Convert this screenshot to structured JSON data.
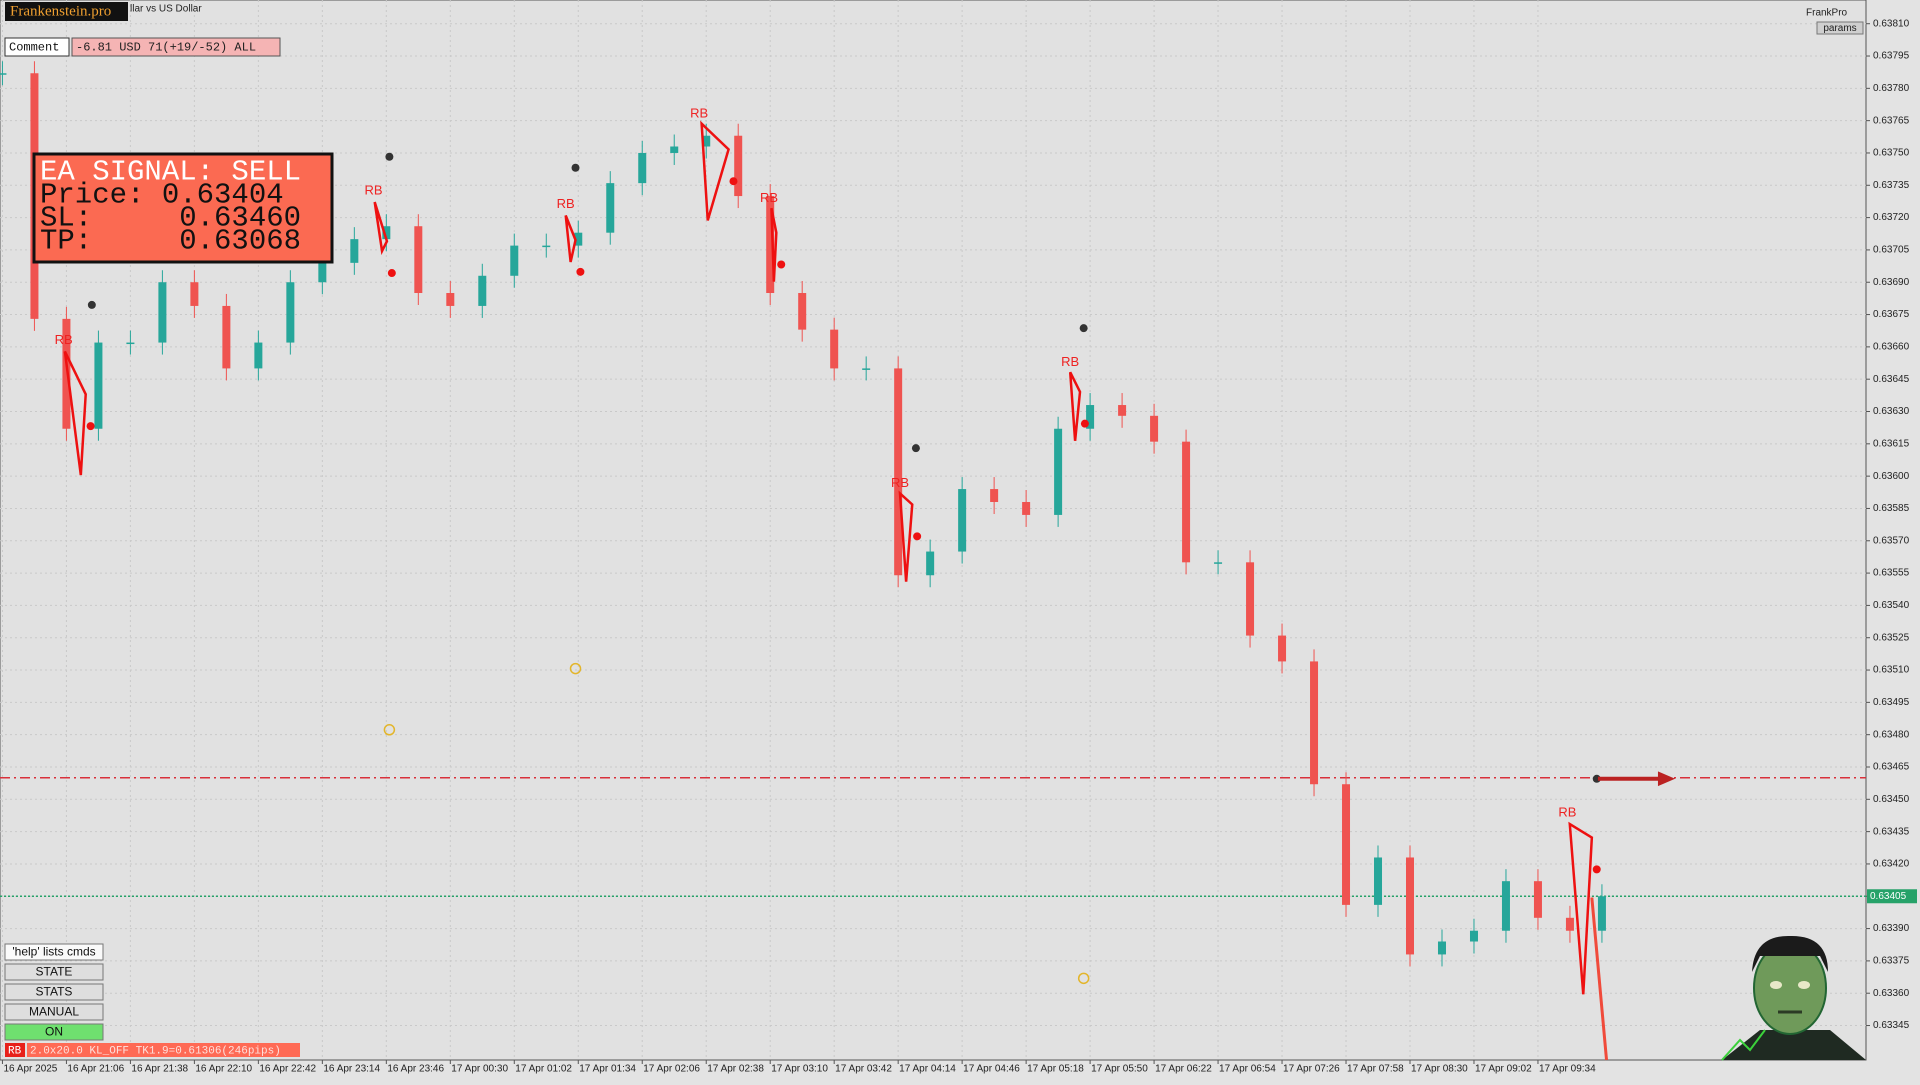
{
  "header": {
    "brand": "Frankenstein.pro",
    "symbol": "llar vs US Dollar",
    "account": "FrankPro",
    "params": "params"
  },
  "comment": {
    "label": "Comment",
    "value": "-6.81 USD 71(+19/-52) ALL"
  },
  "signal_box": {
    "lines": [
      "EA SIGNAL: SELL",
      "Price: 0.63404",
      "SL:     0.63460",
      "TP:     0.63068"
    ]
  },
  "buttons": [
    "'help' lists cmds",
    "STATE",
    "STATS",
    "MANUAL",
    "ON"
  ],
  "status": {
    "tag": "RB",
    "text": "2.0x20.0 KL_OFF TK1.9=0.61306(246pips)"
  },
  "chart_data": {
    "type": "candle-line",
    "categories": [
      "16 Apr 2025",
      null,
      "16 Apr 21:06",
      null,
      "16 Apr 21:38",
      null,
      "16 Apr 22:10",
      null,
      "16 Apr 22:42",
      null,
      "16 Apr 23:14",
      null,
      "16 Apr 23:46",
      null,
      "17 Apr 00:30",
      null,
      "17 Apr 01:02",
      null,
      "17 Apr 01:34",
      null,
      "17 Apr 02:06",
      null,
      "17 Apr 02:38",
      null,
      "17 Apr 03:10",
      null,
      "17 Apr 03:42",
      null,
      "17 Apr 04:14",
      null,
      "17 Apr 04:46",
      null,
      "17 Apr 05:18",
      null,
      "17 Apr 05:50",
      null,
      "17 Apr 06:22",
      null,
      "17 Apr 06:54",
      null,
      "17 Apr 07:26",
      null,
      "17 Apr 07:58",
      null,
      "17 Apr 08:30",
      null,
      "17 Apr 09:02",
      null,
      "17 Apr 09:34",
      null,
      null
    ],
    "values": [
      0.63787,
      0.63673,
      0.63622,
      0.63662,
      0.63662,
      0.6369,
      0.63679,
      0.6365,
      0.63662,
      0.6369,
      0.63699,
      0.6371,
      0.63716,
      0.63685,
      0.63679,
      0.63693,
      0.63707,
      0.63707,
      0.63713,
      0.63736,
      0.6375,
      0.63753,
      0.63758,
      0.6373,
      0.63685,
      0.63668,
      0.6365,
      0.6365,
      0.63554,
      0.63565,
      0.63594,
      0.63588,
      0.63582,
      0.63622,
      0.63633,
      0.63628,
      0.63616,
      0.6356,
      0.6356,
      0.63526,
      0.63514,
      0.63457,
      0.63401,
      0.63423,
      0.63378,
      0.63384,
      0.63389,
      0.63412,
      0.63395,
      0.63389,
      0.63405
    ],
    "up_color": "#26a69a",
    "down_color": "#ef5350",
    "ylim": [
      0.63329,
      0.63821
    ],
    "yticks": [
      {
        "value": 0.6381,
        "label": "0.63810"
      },
      0.63795,
      {
        "value": 0.6378,
        "label": "0.63780"
      },
      0.63765,
      {
        "value": 0.6375,
        "label": "0.63750"
      },
      0.63735,
      {
        "value": 0.6372,
        "label": "0.63720"
      },
      0.63705,
      {
        "value": 0.6369,
        "label": "0.63690"
      },
      0.63675,
      {
        "value": 0.6366,
        "label": "0.63660"
      },
      0.63645,
      {
        "value": 0.6363,
        "label": "0.63630"
      },
      0.63615,
      {
        "value": 0.636,
        "label": "0.63600"
      },
      0.63585,
      {
        "value": 0.6357,
        "label": "0.63570"
      },
      0.63555,
      {
        "value": 0.6354,
        "label": "0.63540"
      },
      0.63525,
      {
        "value": 0.6351,
        "label": "0.63510"
      },
      0.63495,
      {
        "value": 0.6348,
        "label": "0.63480"
      },
      0.63465,
      {
        "value": 0.6345,
        "label": "0.63450"
      },
      0.63435,
      {
        "value": 0.6342,
        "label": "0.63420"
      },
      0.63405,
      {
        "value": 0.6339,
        "label": "0.63390"
      },
      0.63375,
      {
        "value": 0.6336,
        "label": "0.63360"
      },
      0.63345
    ],
    "grid": true,
    "hlines": [
      {
        "value": 0.6346,
        "color": "#d9303a",
        "style": "dash-dot"
      },
      {
        "value": 0.63405,
        "label": "0.63405",
        "color": "#26a269",
        "style": "dotted"
      }
    ],
    "rb_markers": [
      "RB",
      "RB",
      "RB",
      "RB",
      "RB",
      "RB",
      "RB",
      "RB"
    ]
  }
}
